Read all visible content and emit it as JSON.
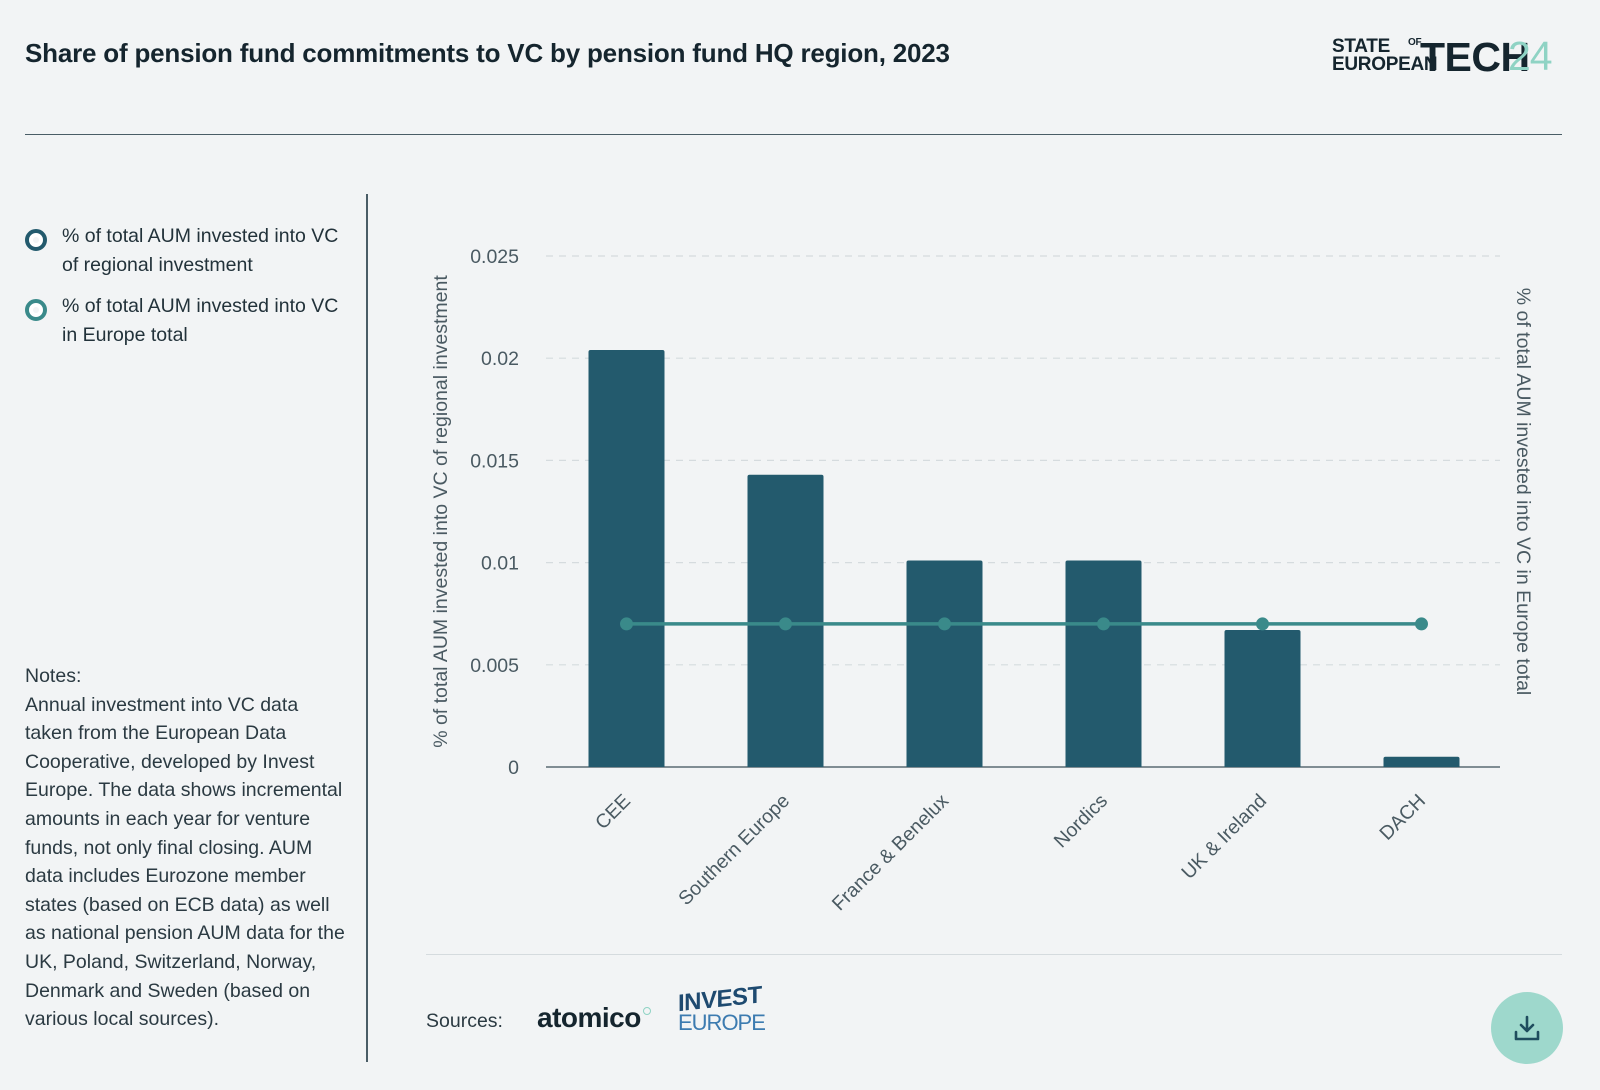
{
  "title": "Share of pension fund commitments to VC by pension fund HQ region, 2023",
  "logo": {
    "line1": "STATE",
    "of": "OF",
    "line2": "EUROPEAN",
    "big": "TECH",
    "num": "24",
    "dot": "·"
  },
  "legend": [
    {
      "label": "% of total AUM invested into VC of regional investment",
      "color": "#235a6d"
    },
    {
      "label": "% of total AUM invested into VC in Europe total",
      "color": "#3a8a8a"
    }
  ],
  "notes": {
    "heading": "Notes:",
    "text": "Annual investment into VC data taken from the European Data Cooperative, developed by Invest Europe. The data shows incremental amounts in each year for venture funds, not only final closing. AUM data includes Eurozone member states (based on ECB data) as well as national pension AUM data for the UK, Poland, Switzerland, Norway, Denmark and Sweden (based on various local sources)."
  },
  "sources": {
    "label": "Sources:",
    "atomico": "atomico",
    "invest_line1": "INVEST",
    "invest_line2": "EUROPE"
  },
  "download_icon": "download-icon",
  "chart_data": {
    "type": "bar",
    "categories": [
      "CEE",
      "Southern Europe",
      "France & Benelux",
      "Nordics",
      "UK & Ireland",
      "DACH"
    ],
    "series": [
      {
        "name": "% of total AUM invested into VC of regional investment",
        "type": "bar",
        "color": "#235a6d",
        "values": [
          0.0204,
          0.0143,
          0.0101,
          0.0101,
          0.0067,
          0.0005
        ]
      },
      {
        "name": "% of total AUM invested into VC in Europe total",
        "type": "line",
        "color": "#3a8a8a",
        "values": [
          0.007,
          0.007,
          0.007,
          0.007,
          0.007,
          0.007
        ]
      }
    ],
    "ylabel": "% of total AUM invested into VC of regional investment",
    "ylabel_right": "% of total AUM invested into VC in Europe total",
    "ylim": [
      0,
      0.025
    ],
    "yticks": [
      "0",
      "0.005",
      "0.01",
      "0.015",
      "0.02",
      "0.025"
    ],
    "ytick_values": [
      0,
      0.005,
      0.01,
      0.015,
      0.02,
      0.025
    ],
    "grid": true
  }
}
